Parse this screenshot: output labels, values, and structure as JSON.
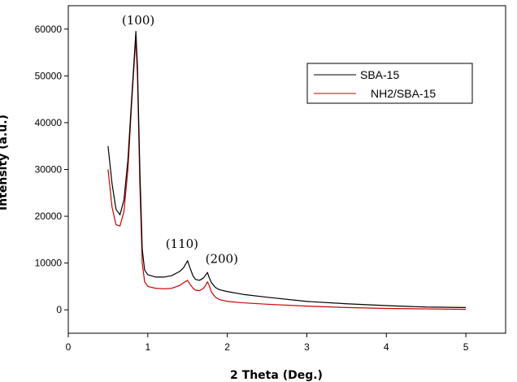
{
  "chart_data": {
    "type": "line",
    "title": "",
    "xlabel": "2 Theta (Deg.)",
    "ylabel": "Intensity (a.u.)",
    "xlim": [
      0,
      5.5
    ],
    "ylim": [
      -5000,
      65000
    ],
    "xticks": [
      "0",
      "1",
      "2",
      "3",
      "4",
      "5"
    ],
    "yticks": [
      "0",
      "10000",
      "20000",
      "30000",
      "40000",
      "50000",
      "60000"
    ],
    "xtick_values": [
      0,
      1,
      2,
      3,
      4,
      5
    ],
    "ytick_values": [
      0,
      10000,
      20000,
      30000,
      40000,
      50000,
      60000
    ],
    "grid": false,
    "legend_position": "top-right",
    "series": [
      {
        "name": "SBA-15",
        "color": "#000000",
        "x": [
          0.5,
          0.55,
          0.6,
          0.65,
          0.7,
          0.75,
          0.8,
          0.83,
          0.85,
          0.87,
          0.9,
          0.93,
          0.96,
          1.0,
          1.1,
          1.2,
          1.3,
          1.4,
          1.45,
          1.5,
          1.53,
          1.57,
          1.6,
          1.65,
          1.7,
          1.73,
          1.75,
          1.77,
          1.8,
          1.85,
          1.9,
          2.0,
          2.2,
          2.5,
          3.0,
          3.5,
          4.0,
          4.5,
          5.0
        ],
        "y": [
          35000,
          27000,
          21500,
          20300,
          23500,
          32000,
          46000,
          54000,
          59500,
          52000,
          30000,
          13000,
          8500,
          7500,
          7000,
          7000,
          7300,
          8200,
          9000,
          10500,
          9000,
          7200,
          6500,
          6300,
          6800,
          7500,
          8000,
          7000,
          5800,
          4800,
          4300,
          3900,
          3300,
          2700,
          1800,
          1300,
          900,
          600,
          500
        ]
      },
      {
        "name": "NH2/SBA-15",
        "color": "#cc0000",
        "x": [
          0.5,
          0.55,
          0.6,
          0.65,
          0.7,
          0.75,
          0.8,
          0.83,
          0.85,
          0.87,
          0.9,
          0.93,
          0.96,
          1.0,
          1.1,
          1.2,
          1.3,
          1.4,
          1.45,
          1.5,
          1.53,
          1.57,
          1.6,
          1.65,
          1.7,
          1.73,
          1.75,
          1.77,
          1.8,
          1.85,
          1.9,
          2.0,
          2.2,
          2.5,
          3.0,
          3.5,
          4.0,
          4.5,
          5.0
        ],
        "y": [
          30000,
          22000,
          18200,
          17900,
          21000,
          30000,
          45000,
          53000,
          58000,
          50000,
          27000,
          10000,
          6000,
          5000,
          4600,
          4500,
          4600,
          5200,
          5800,
          6300,
          5500,
          4600,
          4200,
          4100,
          4600,
          5300,
          6000,
          5300,
          3800,
          2700,
          2200,
          1800,
          1500,
          1200,
          800,
          500,
          300,
          200,
          100
        ]
      }
    ],
    "annotations": [
      {
        "text": "(100)",
        "x": 0.88,
        "y": 61000
      },
      {
        "text": "(110)",
        "x": 1.43,
        "y": 13200
      },
      {
        "text": "(200)",
        "x": 1.93,
        "y": 10000
      }
    ]
  }
}
